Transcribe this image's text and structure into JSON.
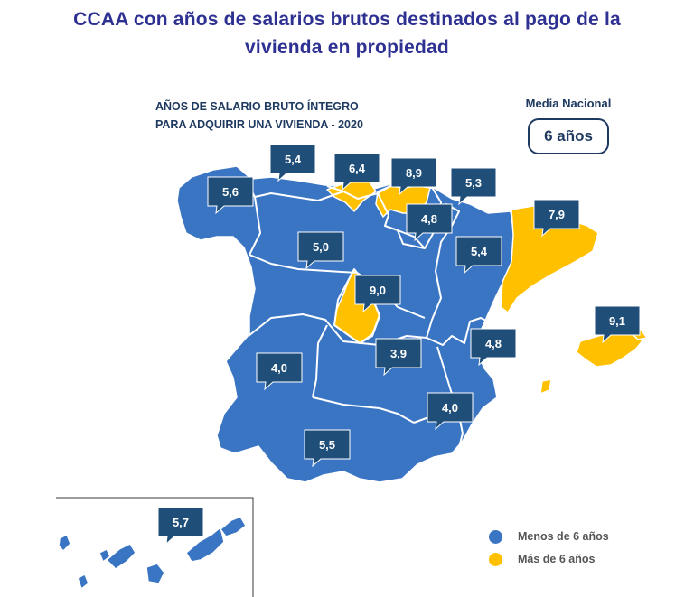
{
  "title": {
    "line1": "CCAA con años de salarios brutos destinados al pago de la",
    "line2": "vivienda en propiedad"
  },
  "subtitle": {
    "line1": "AÑOS DE SALARIO BRUTO ÍNTEGRO",
    "line2": "PARA ADQUIRIR UNA VIVIENDA - 2020"
  },
  "national_average": {
    "label": "Media Nacional",
    "value": "6 años"
  },
  "colors": {
    "below": "#3a75c4",
    "above": "#ffc000",
    "callout": "#1f4e79",
    "border": "#ffffff"
  },
  "regions": [
    {
      "id": "galicia",
      "value": "5,6",
      "category": "below"
    },
    {
      "id": "asturias",
      "value": "5,4",
      "category": "below"
    },
    {
      "id": "cantabria",
      "value": "6,4",
      "category": "above"
    },
    {
      "id": "pais-vasco",
      "value": "8,9",
      "category": "above"
    },
    {
      "id": "navarra",
      "value": "5,3",
      "category": "below"
    },
    {
      "id": "la-rioja",
      "value": "4,8",
      "category": "below"
    },
    {
      "id": "cataluna",
      "value": "7,9",
      "category": "above"
    },
    {
      "id": "castilla-y-leon",
      "value": "5,0",
      "category": "below"
    },
    {
      "id": "aragon",
      "value": "5,4",
      "category": "below"
    },
    {
      "id": "madrid",
      "value": "9,0",
      "category": "above"
    },
    {
      "id": "baleares",
      "value": "9,1",
      "category": "above"
    },
    {
      "id": "extremadura",
      "value": "4,0",
      "category": "below"
    },
    {
      "id": "castilla-la-mancha",
      "value": "3,9",
      "category": "below"
    },
    {
      "id": "comunidad-valenciana",
      "value": "4,8",
      "category": "below"
    },
    {
      "id": "murcia",
      "value": "4,0",
      "category": "below"
    },
    {
      "id": "andalucia",
      "value": "5,5",
      "category": "below"
    },
    {
      "id": "canarias",
      "value": "5,7",
      "category": "below"
    }
  ],
  "legend": [
    {
      "label": "Menos de 6 años",
      "color": "#3a75c4"
    },
    {
      "label": "Más de 6 años",
      "color": "#ffc000"
    }
  ]
}
